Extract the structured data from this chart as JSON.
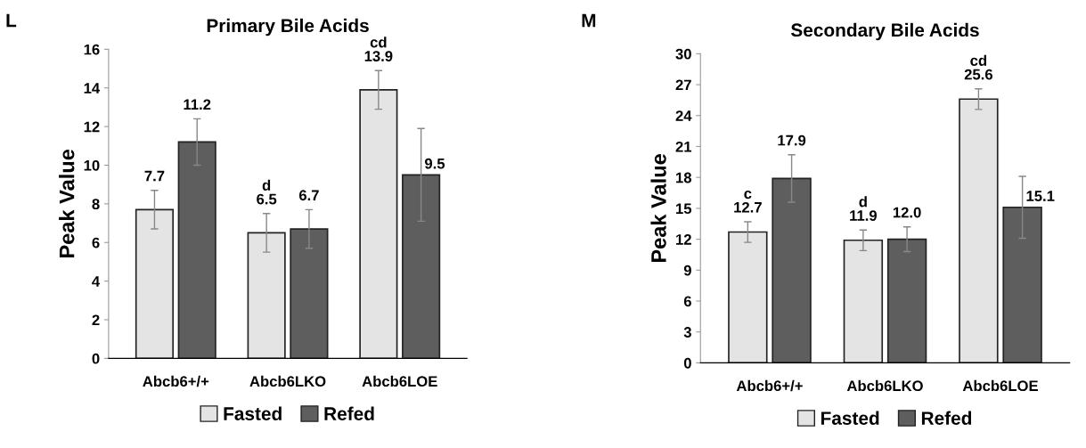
{
  "chart_data": [
    {
      "type": "bar",
      "title": "Primary Bile Acids",
      "ylabel": "Peak Value",
      "categories": [
        "Abcb6+/+",
        "Abcb6LKO",
        "Abcb6LOE"
      ],
      "ylim": [
        0,
        16
      ],
      "yticks": [
        0,
        2,
        4,
        6,
        8,
        10,
        12,
        14,
        16
      ],
      "grid": false,
      "legend": "bottom",
      "annotations": [
        "L"
      ],
      "series": [
        {
          "name": "Fasted",
          "color": "#e4e4e4",
          "values": [
            7.7,
            6.5,
            13.9
          ],
          "errors": [
            1.0,
            1.0,
            1.0
          ],
          "value_labels": [
            "7.7",
            "d\n6.5",
            "cd\n13.9"
          ]
        },
        {
          "name": "Refed",
          "color": "#5e5e5e",
          "values": [
            11.2,
            6.7,
            9.5
          ],
          "errors": [
            1.2,
            1.0,
            2.4
          ],
          "value_labels": [
            "11.2",
            "6.7",
            "9.5"
          ]
        }
      ]
    },
    {
      "type": "bar",
      "title": "Secondary Bile Acids",
      "ylabel": "Peak Value",
      "categories": [
        "Abcb6+/+",
        "Abcb6LKO",
        "Abcb6LOE"
      ],
      "ylim": [
        0,
        30
      ],
      "yticks": [
        0,
        3,
        6,
        9,
        12,
        15,
        18,
        21,
        24,
        27,
        30
      ],
      "grid": false,
      "legend": "bottom",
      "annotations": [
        "M"
      ],
      "series": [
        {
          "name": "Fasted",
          "color": "#e4e4e4",
          "values": [
            12.7,
            11.9,
            25.6
          ],
          "errors": [
            1.0,
            1.0,
            1.0
          ],
          "value_labels": [
            "c\n12.7",
            "d\n11.9",
            "cd\n25.6"
          ]
        },
        {
          "name": "Refed",
          "color": "#5e5e5e",
          "values": [
            17.9,
            12.0,
            15.1
          ],
          "errors": [
            2.3,
            1.2,
            3.0
          ],
          "value_labels": [
            "17.9",
            "12.0",
            "15.1"
          ]
        }
      ]
    }
  ]
}
